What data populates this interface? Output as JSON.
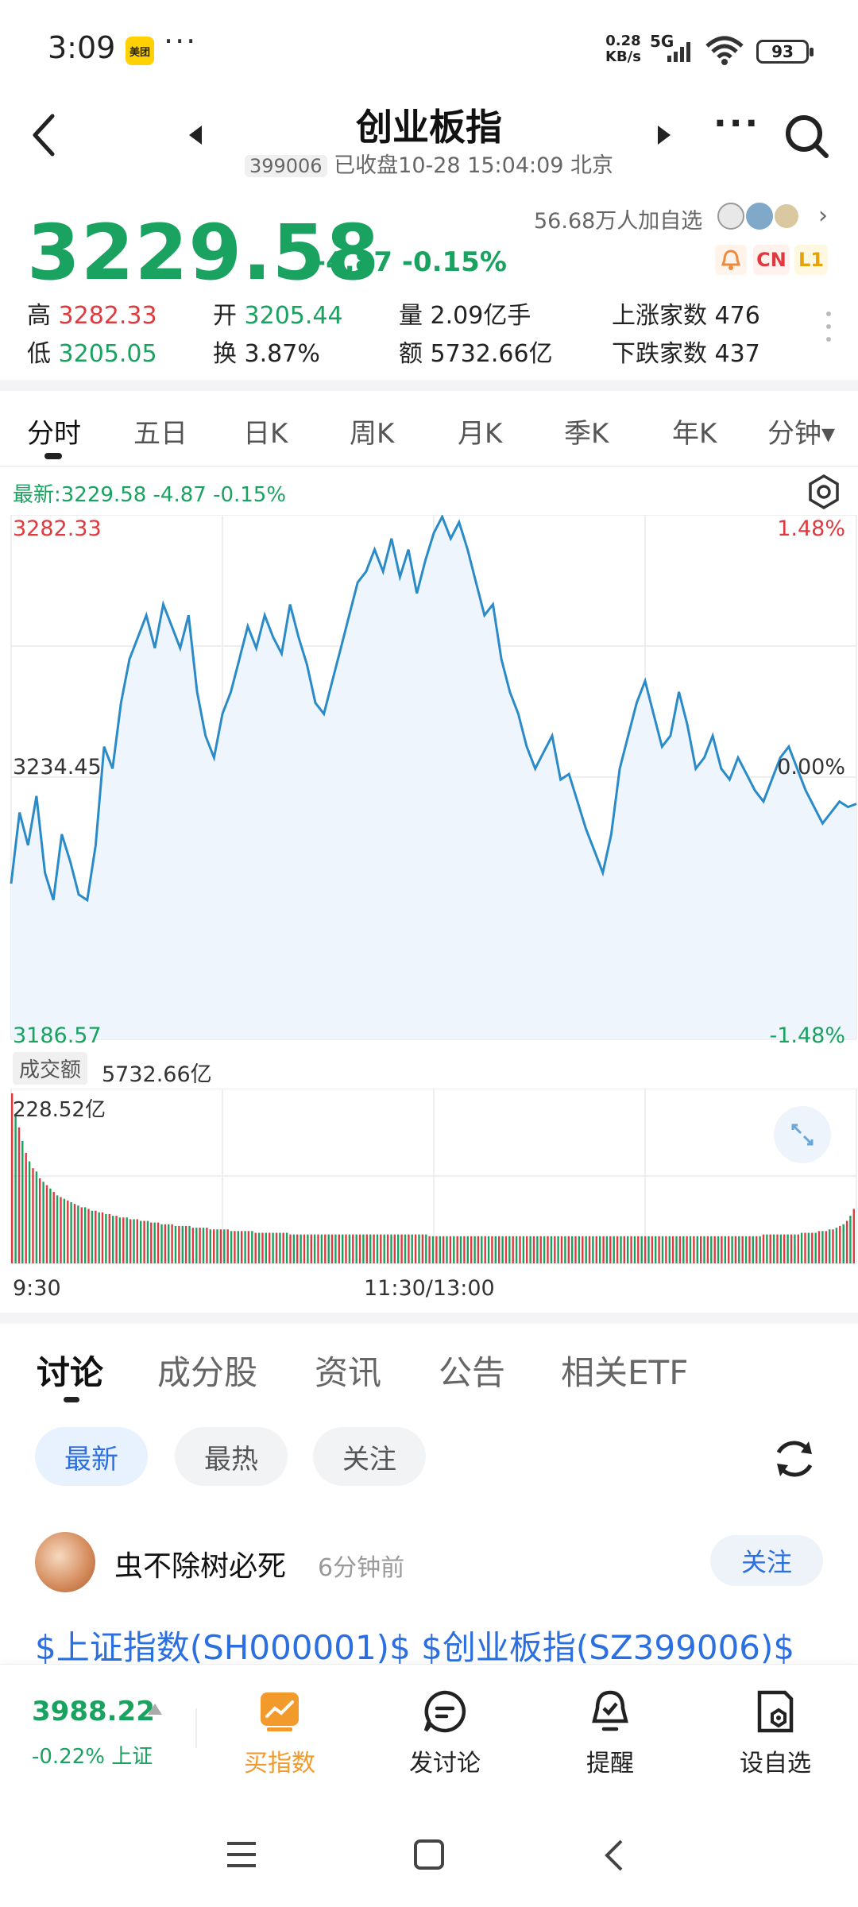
{
  "status_bar": {
    "time": "3:09",
    "app_badge": "美团",
    "more": "···",
    "net_speed_value": "0.28",
    "net_speed_unit": "KB/s",
    "network": "5G",
    "battery": "93"
  },
  "header": {
    "title": "创业板指",
    "code": "399006",
    "status": "已收盘10-28 15:04:09 北京",
    "more": "···"
  },
  "quote": {
    "price": "3229.58",
    "change": "-4.87 -0.15%",
    "watchers": "56.68万人加自选",
    "tags": [
      "CN",
      "L1"
    ],
    "stats": {
      "high_label": "高",
      "high": "3282.33",
      "open_label": "开",
      "open": "3205.44",
      "volume_label": "量",
      "volume": "2.09亿手",
      "rise_label": "上涨家数",
      "rise": "476",
      "low_label": "低",
      "low": "3205.05",
      "turnover_label": "换",
      "turnover": "3.87%",
      "amount_label": "额",
      "amount": "5732.66亿",
      "fall_label": "下跌家数",
      "fall": "437"
    }
  },
  "chart_tabs": [
    "分时",
    "五日",
    "日K",
    "周K",
    "月K",
    "季K",
    "年K",
    "分钟▾"
  ],
  "chart_data": {
    "type": "line",
    "latest_label": "最新:3229.58  -4.87  -0.15%",
    "y_left_ticks": [
      "3282.33",
      "3234.45",
      "3186.57"
    ],
    "y_right_ticks": [
      "1.48%",
      "0.00%",
      "-1.48%"
    ],
    "ylim": [
      3186.57,
      3282.33
    ],
    "baseline": 3234.45,
    "x_ticks": [
      "9:30",
      "11:30/13:00"
    ],
    "values": [
      3215,
      3228,
      3222,
      3231,
      3217,
      3212,
      3224,
      3219,
      3213,
      3212,
      3222,
      3240,
      3236,
      3248,
      3256,
      3260,
      3264,
      3258,
      3266,
      3262,
      3258,
      3264,
      3250,
      3242,
      3238,
      3246,
      3250,
      3256,
      3262,
      3258,
      3264,
      3260,
      3257,
      3266,
      3260,
      3255,
      3248,
      3246,
      3252,
      3258,
      3264,
      3270,
      3272,
      3276,
      3272,
      3278,
      3271,
      3276,
      3268,
      3274,
      3279,
      3282,
      3278,
      3281,
      3276,
      3270,
      3264,
      3266,
      3256,
      3250,
      3246,
      3240,
      3236,
      3239,
      3242,
      3234,
      3235,
      3230,
      3225,
      3221,
      3217,
      3224,
      3236,
      3242,
      3248,
      3252,
      3246,
      3240,
      3242,
      3250,
      3244,
      3236,
      3238,
      3242,
      3236,
      3234,
      3238,
      3235,
      3232,
      3230,
      3234,
      3238,
      3240,
      3236,
      3232,
      3229,
      3226,
      3228,
      3230,
      3229,
      3229.58
    ],
    "volume_label": "成交额",
    "volume_total": "5732.66亿",
    "volume_max": "228.52亿",
    "volume_values": [
      100,
      88,
      80,
      72,
      65,
      60,
      56,
      54,
      50,
      48,
      46,
      44,
      42,
      40,
      39,
      38,
      37,
      36,
      35,
      34,
      33,
      33,
      32,
      31,
      31,
      30,
      30,
      29,
      29,
      28,
      28,
      27,
      27,
      27,
      26,
      26,
      26,
      25,
      25,
      25,
      24,
      24,
      24,
      23,
      23,
      23,
      23,
      22,
      22,
      22,
      22,
      22,
      21,
      21,
      21,
      21,
      21,
      20,
      20,
      20,
      20,
      20,
      20,
      19,
      19,
      19,
      19,
      19,
      19,
      19,
      18,
      18,
      18,
      18,
      18,
      18,
      18,
      18,
      18,
      18,
      17,
      17,
      17,
      17,
      17,
      17,
      17,
      17,
      17,
      17,
      17,
      17,
      17,
      17,
      17,
      17,
      17,
      17,
      17,
      17,
      17,
      17,
      17,
      17,
      17,
      17,
      17,
      17,
      17,
      17,
      17,
      17,
      17,
      17,
      17,
      17,
      17,
      17,
      17,
      17,
      16,
      16,
      16,
      16,
      16,
      16,
      16,
      16,
      16,
      16,
      16,
      16,
      16,
      16,
      16,
      16,
      16,
      16,
      16,
      16,
      16,
      16,
      16,
      16,
      16,
      16,
      16,
      16,
      16,
      16,
      16,
      16,
      16,
      16,
      16,
      16,
      16,
      16,
      16,
      16,
      16,
      16,
      16,
      16,
      16,
      16,
      16,
      16,
      16,
      16,
      16,
      16,
      16,
      16,
      16,
      16,
      16,
      16,
      16,
      16,
      16,
      16,
      16,
      16,
      16,
      16,
      16,
      16,
      16,
      16,
      16,
      16,
      16,
      16,
      16,
      16,
      16,
      16,
      16,
      16,
      16,
      16,
      16,
      16,
      16,
      16,
      16,
      16,
      16,
      16,
      16,
      16,
      16,
      16,
      16,
      16,
      17,
      17,
      17,
      17,
      17,
      17,
      17,
      17,
      17,
      17,
      17,
      18,
      18,
      18,
      18,
      18,
      19,
      19,
      19,
      20,
      20,
      21,
      22,
      23,
      25,
      28,
      32
    ]
  },
  "discussion_tabs": [
    "讨论",
    "成分股",
    "资讯",
    "公告",
    "相关ETF"
  ],
  "filter_chips": [
    "最新",
    "最热",
    "关注"
  ],
  "post": {
    "author": "虫不除树必死",
    "time": "6分钟前",
    "follow": "关注",
    "text": "$上证指数(SH000001)$ $创业板指(SZ399006)$"
  },
  "bottom_nav": {
    "index_price": "3988.22",
    "index_change": "-0.22% 上证",
    "items": [
      "买指数",
      "发讨论",
      "提醒",
      "设自选"
    ]
  },
  "colors": {
    "down": "#1aa260",
    "up": "#e0393e",
    "line": "#2a8bc8",
    "accent": "#f39a2c"
  }
}
